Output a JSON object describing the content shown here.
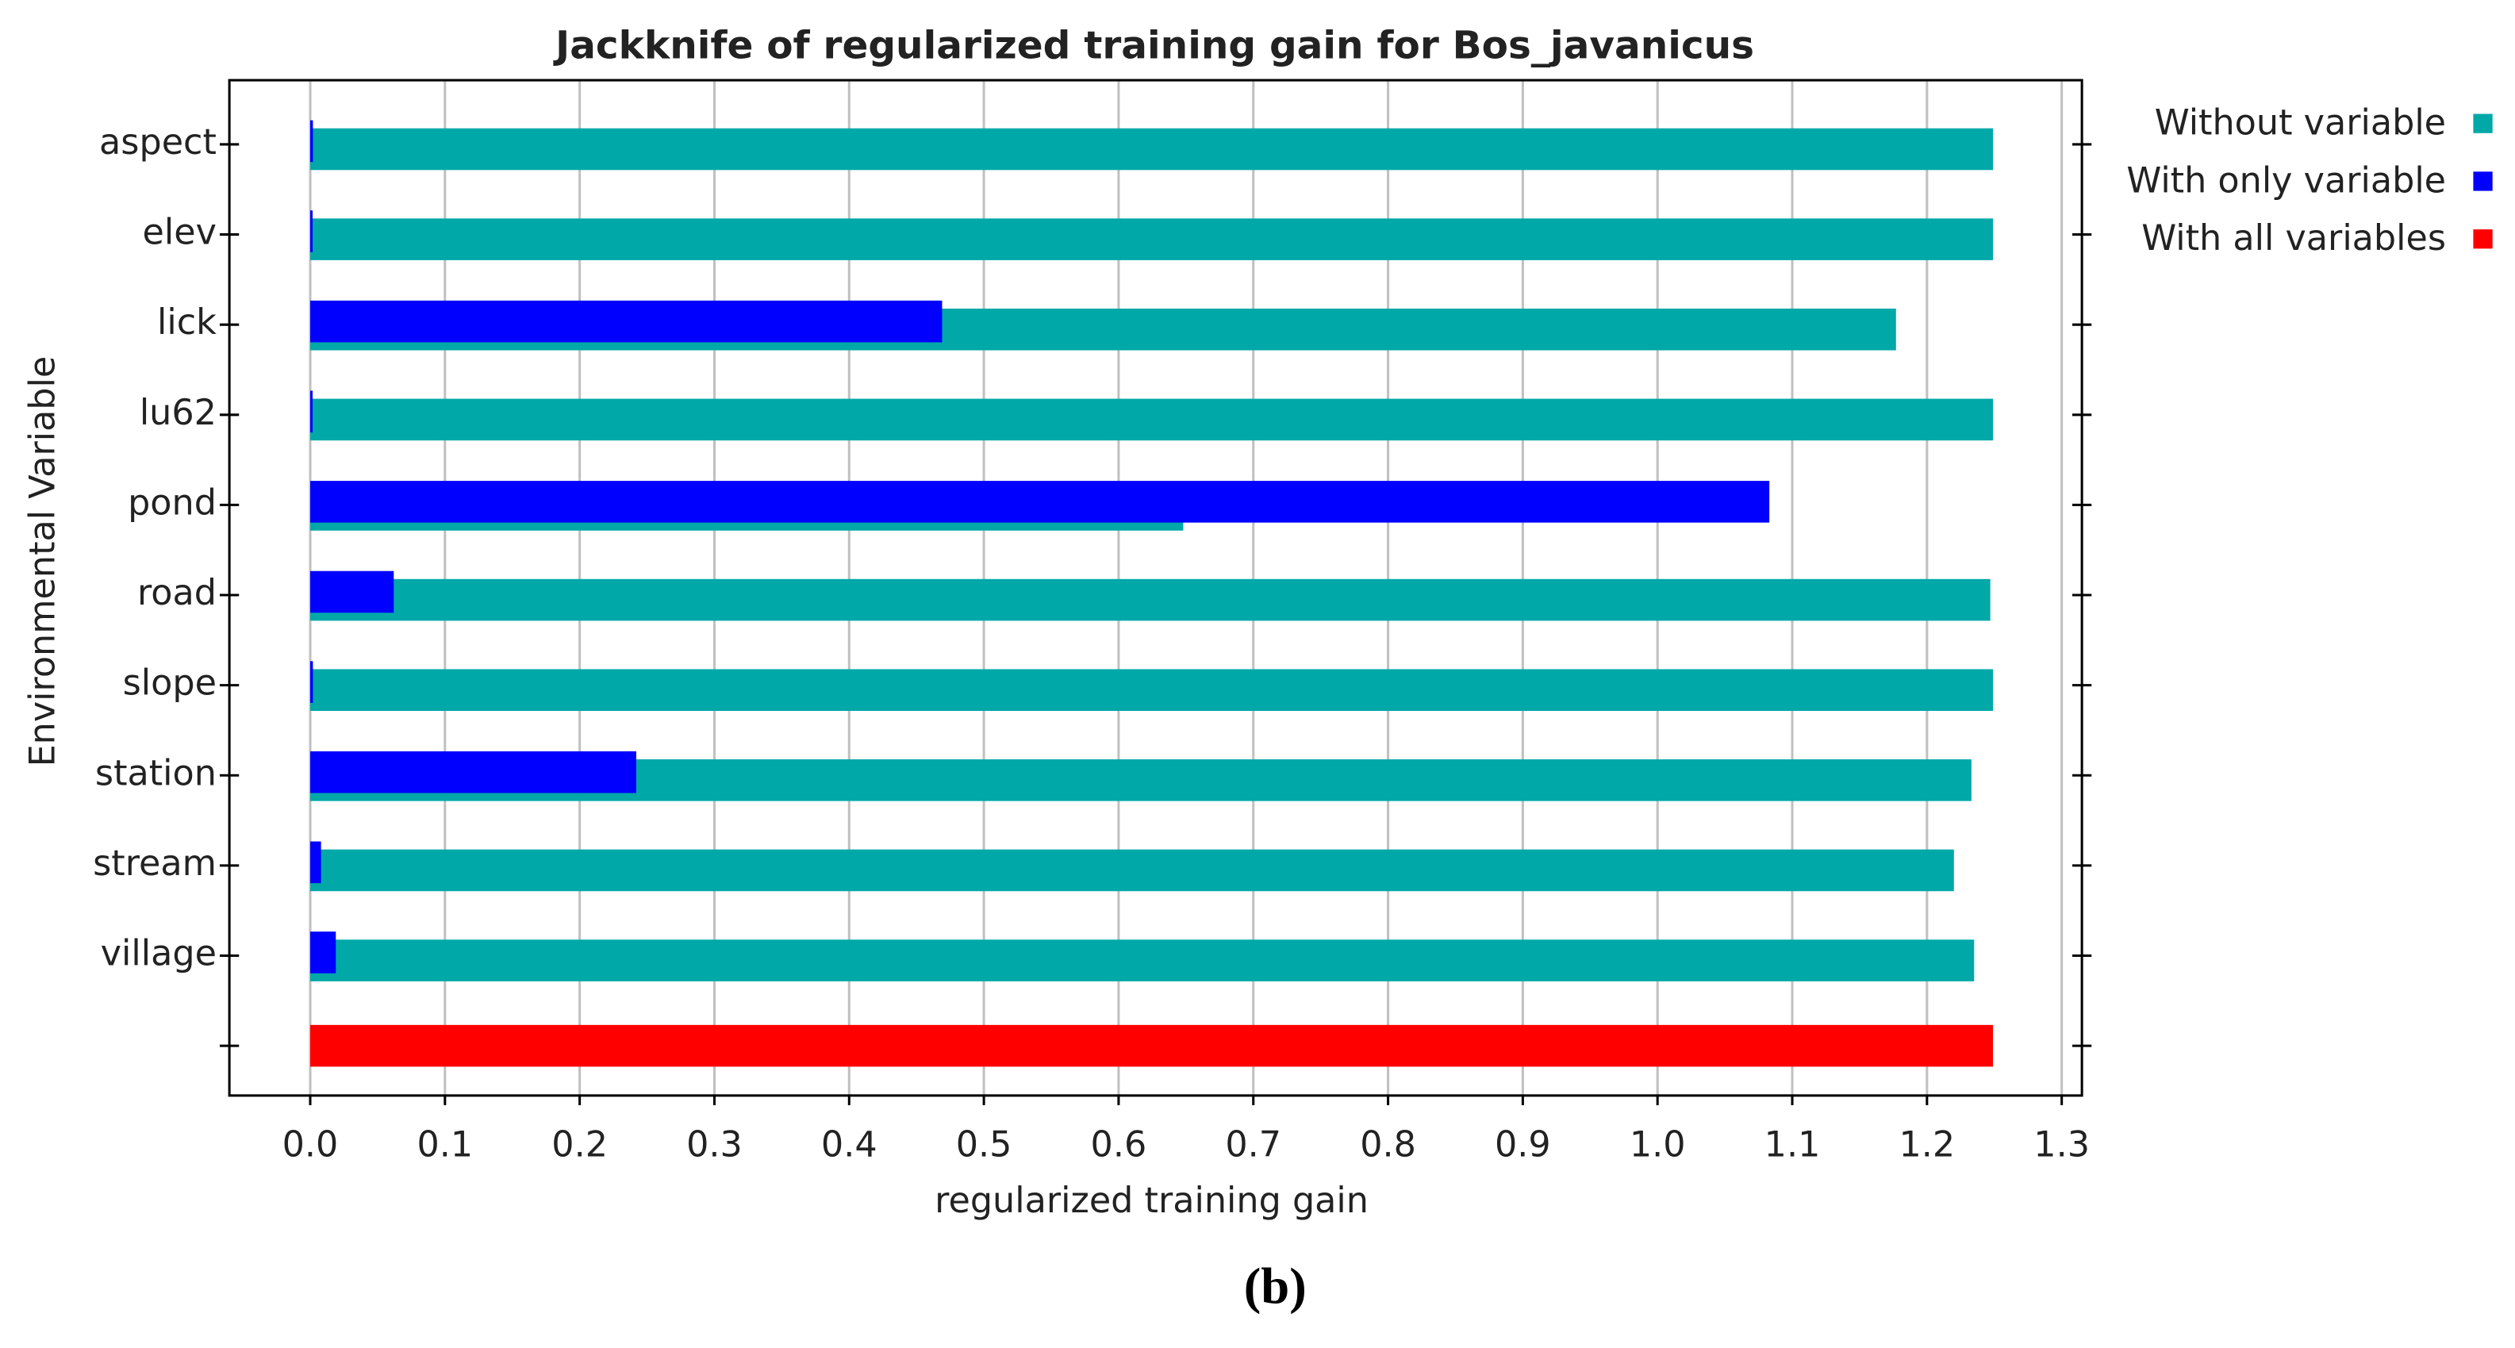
{
  "chart_data": {
    "type": "bar",
    "orientation": "horizontal",
    "title": "Jackknife of regularized training gain for Bos_javanicus",
    "xlabel": "regularized training gain",
    "ylabel": "Environmental Variable",
    "caption": "(b)",
    "categories": [
      "aspect",
      "elev",
      "lick",
      "lu62",
      "pond",
      "road",
      "slope",
      "station",
      "stream",
      "village",
      null
    ],
    "series": [
      {
        "name": "Without variable",
        "color": "#00a8a8",
        "values": [
          1.249,
          1.249,
          1.177,
          1.249,
          0.648,
          1.247,
          1.249,
          1.233,
          1.22,
          1.235,
          null
        ]
      },
      {
        "name": "With only variable",
        "color": "#0000ff",
        "values": [
          0.002,
          0,
          0.469,
          0,
          1.083,
          0.062,
          0.002,
          0.242,
          0.008,
          0.019,
          null
        ]
      },
      {
        "name": "With all variables",
        "color": "#ff0000",
        "values": [
          null,
          null,
          null,
          null,
          null,
          null,
          null,
          null,
          null,
          null,
          1.249
        ]
      }
    ],
    "xlim": [
      -0.06,
      1.315
    ],
    "xticks": [
      {
        "value": 0,
        "label": "0.0"
      },
      0.1,
      0.2,
      0.3,
      0.4,
      0.5,
      0.6,
      0.7,
      0.8,
      0.9,
      {
        "value": 1,
        "label": "1.0"
      },
      1.1,
      1.2,
      1.3
    ],
    "grid": true,
    "legend": "outside-top-right"
  }
}
